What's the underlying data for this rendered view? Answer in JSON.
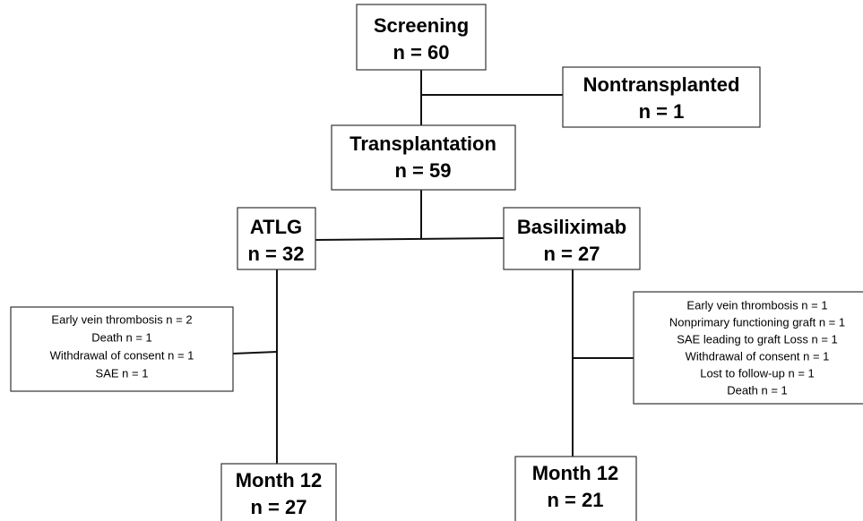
{
  "nodes": [
    {
      "lines": [
        "Screening",
        "n = 60"
      ]
    },
    {
      "lines": [
        "Nontransplanted",
        "n = 1"
      ]
    },
    {
      "lines": [
        "Transplantation",
        "n = 59"
      ]
    },
    {
      "lines": [
        "ATLG",
        "n = 32"
      ]
    },
    {
      "lines": [
        "Basiliximab",
        "n = 27"
      ]
    },
    {
      "lines": [
        "Early vein thrombosis n = 2",
        "Death n = 1",
        "Withdrawal of consent n = 1",
        "SAE n = 1"
      ]
    },
    {
      "lines": [
        "Early vein thrombosis n = 1",
        "Nonprimary functioning graft n = 1",
        "SAE leading to graft Loss n = 1",
        "Withdrawal of consent n = 1",
        "Lost to follow-up n = 1",
        "Death n = 1"
      ]
    },
    {
      "lines": [
        "Month 12",
        "n = 27"
      ]
    },
    {
      "lines": [
        "Month 12",
        "n = 21"
      ]
    }
  ]
}
